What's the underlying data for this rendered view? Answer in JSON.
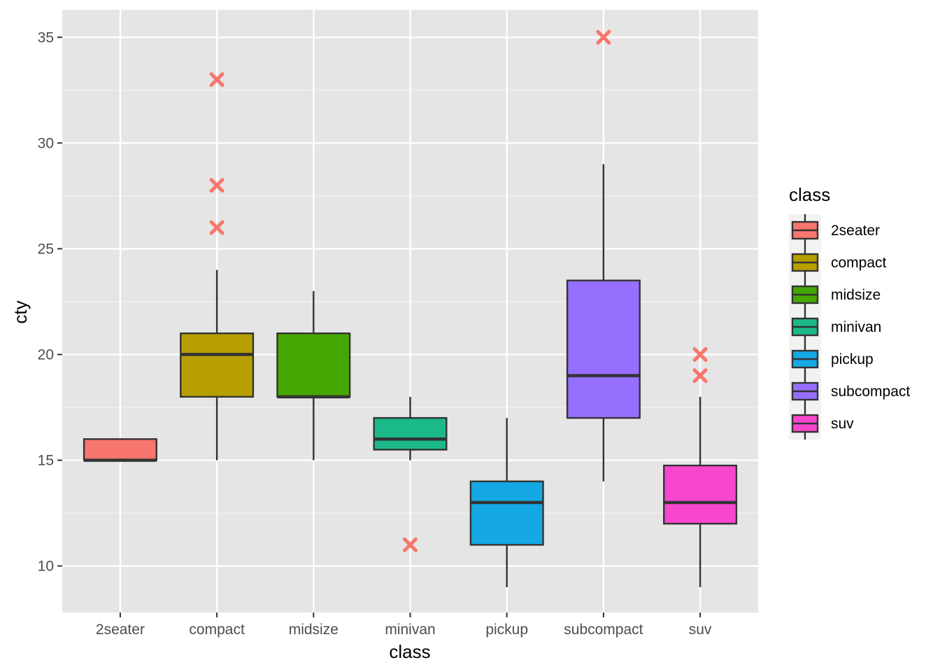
{
  "chart_data": {
    "type": "boxplot",
    "title": "",
    "xlabel": "class",
    "ylabel": "cty",
    "ylim": [
      7.8,
      36.3
    ],
    "yticks": [
      10,
      15,
      20,
      25,
      30,
      35
    ],
    "ytick_labels": [
      "10",
      "15",
      "20",
      "25",
      "30",
      "35"
    ],
    "grid": true,
    "legend": {
      "title": "class",
      "placement": "right"
    },
    "outlier_style": {
      "shape": "x",
      "color": "#F8766D"
    },
    "categories": [
      "2seater",
      "compact",
      "midsize",
      "minivan",
      "pickup",
      "subcompact",
      "suv"
    ],
    "boxes": [
      {
        "category": "2seater",
        "whisker_low": 15,
        "q1": 15,
        "median": 15,
        "q3": 16,
        "whisker_high": 16,
        "outliers": [],
        "color": "#F8766D"
      },
      {
        "category": "compact",
        "whisker_low": 15,
        "q1": 18,
        "median": 20,
        "q3": 21,
        "whisker_high": 24,
        "outliers": [
          26,
          28,
          33
        ],
        "color": "#B79F00"
      },
      {
        "category": "midsize",
        "whisker_low": 15,
        "q1": 18,
        "median": 18,
        "q3": 21,
        "whisker_high": 23,
        "outliers": [],
        "color": "#45A800"
      },
      {
        "category": "minivan",
        "whisker_low": 15,
        "q1": 15.5,
        "median": 16,
        "q3": 17,
        "whisker_high": 18,
        "outliers": [
          11
        ],
        "color": "#1BB98A"
      },
      {
        "category": "pickup",
        "whisker_low": 9,
        "q1": 11,
        "median": 13,
        "q3": 14,
        "whisker_high": 17,
        "outliers": [],
        "color": "#14A8E4"
      },
      {
        "category": "subcompact",
        "whisker_low": 14,
        "q1": 17,
        "median": 19,
        "q3": 23.5,
        "whisker_high": 29,
        "outliers": [
          35
        ],
        "color": "#976FFF"
      },
      {
        "category": "suv",
        "whisker_low": 9,
        "q1": 12,
        "median": 13,
        "q3": 14.75,
        "whisker_high": 18,
        "outliers": [
          19,
          20
        ],
        "color": "#F847CE"
      }
    ]
  }
}
